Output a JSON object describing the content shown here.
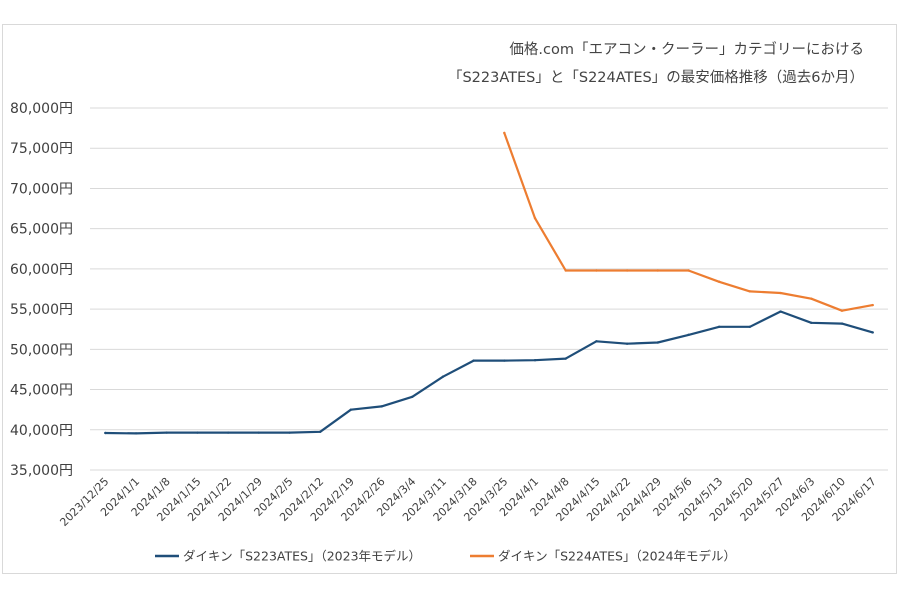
{
  "chart_data": {
    "type": "line",
    "title": "価格.com「エアコン・クーラー」カテゴリーにおける",
    "subtitle": "「S223ATES」と「S224ATES」の最安価格推移（過去6か月）",
    "xlabel": "",
    "ylabel": "",
    "ylim": [
      35000,
      80000
    ],
    "y_ticks": [
      "35,000円",
      "40,000円",
      "45,000円",
      "50,000円",
      "55,000円",
      "60,000円",
      "65,000円",
      "70,000円",
      "75,000円",
      "80,000円"
    ],
    "y_tick_values": [
      35000,
      40000,
      45000,
      50000,
      55000,
      60000,
      65000,
      70000,
      75000,
      80000
    ],
    "grid": true,
    "legend_position": "bottom",
    "categories": [
      "2023/12/25",
      "2024/1/1",
      "2024/1/8",
      "2024/1/15",
      "2024/1/22",
      "2024/1/29",
      "2024/2/5",
      "2024/2/12",
      "2024/2/19",
      "2024/2/26",
      "2024/3/4",
      "2024/3/11",
      "2024/3/18",
      "2024/3/25",
      "2024/4/1",
      "2024/4/8",
      "2024/4/15",
      "2024/4/22",
      "2024/4/29",
      "2024/5/6",
      "2024/5/13",
      "2024/5/20",
      "2024/5/27",
      "2024/6/3",
      "2024/6/10",
      "2024/6/17"
    ],
    "series": [
      {
        "name": "ダイキン「S223ATES」（2023年モデル）",
        "color": "#1f4e79",
        "values": [
          39600,
          39550,
          39650,
          39650,
          39650,
          39650,
          39650,
          39750,
          42500,
          42900,
          44100,
          46600,
          48600,
          48600,
          48650,
          48850,
          51000,
          50700,
          50850,
          51800,
          52800,
          52800,
          54700,
          53300,
          53200,
          52100
        ]
      },
      {
        "name": "ダイキン「S224ATES」（2024年モデル）",
        "color": "#ed7d31",
        "values": [
          null,
          null,
          null,
          null,
          null,
          null,
          null,
          null,
          null,
          null,
          null,
          null,
          null,
          76900,
          66300,
          59800,
          59800,
          59800,
          59800,
          59800,
          58400,
          57200,
          57000,
          56300,
          54800,
          55500
        ]
      }
    ]
  }
}
